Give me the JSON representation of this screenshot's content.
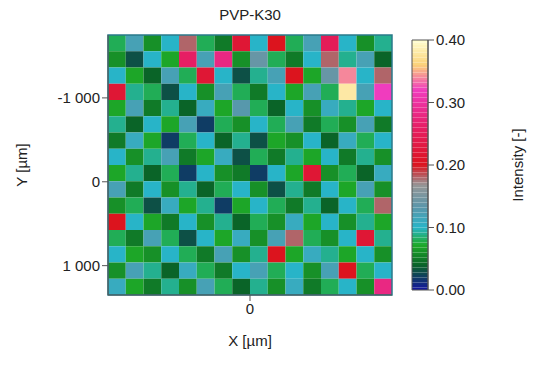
{
  "chart_data": {
    "type": "heatmap",
    "title": "PVP-K30",
    "x_label": "X [µm]",
    "y_label": "Y [µm]",
    "xlim": [
      -1500,
      1500
    ],
    "ylim": [
      -1750,
      1350
    ],
    "xticks": [
      0
    ],
    "yticks": [
      {
        "value": -1000,
        "label": "-1 000"
      },
      {
        "value": 0,
        "label": "0"
      },
      {
        "value": 1000,
        "label": "1 000"
      }
    ],
    "cells": [
      [
        0.08,
        0.12,
        0.06,
        0.1,
        0.18,
        0.08,
        0.05,
        0.22,
        0.1,
        0.2,
        0.08,
        0.12,
        0.25,
        0.1,
        0.06,
        0.09
      ],
      [
        0.06,
        0.03,
        0.1,
        0.07,
        0.26,
        0.12,
        0.28,
        0.06,
        0.14,
        0.08,
        0.05,
        0.1,
        0.18,
        0.09,
        0.12,
        0.04
      ],
      [
        0.1,
        0.07,
        0.04,
        0.12,
        0.08,
        0.22,
        0.1,
        0.03,
        0.09,
        0.12,
        0.2,
        0.07,
        0.14,
        0.34,
        0.1,
        0.18
      ],
      [
        0.22,
        0.09,
        0.08,
        0.03,
        0.1,
        0.06,
        0.12,
        0.08,
        0.05,
        0.1,
        0.07,
        0.12,
        0.08,
        0.38,
        0.12,
        0.32
      ],
      [
        0.07,
        0.12,
        0.05,
        0.09,
        0.04,
        0.11,
        0.07,
        0.13,
        0.08,
        0.04,
        0.1,
        0.06,
        0.11,
        0.09,
        0.07,
        0.1
      ],
      [
        0.09,
        0.04,
        0.1,
        0.07,
        0.12,
        0.02,
        0.08,
        0.06,
        0.1,
        0.08,
        0.12,
        0.05,
        0.08,
        0.06,
        0.12,
        0.05
      ],
      [
        0.05,
        0.11,
        0.07,
        0.02,
        0.08,
        0.1,
        0.04,
        0.09,
        0.03,
        0.07,
        0.06,
        0.1,
        0.04,
        0.11,
        0.08,
        0.1
      ],
      [
        0.1,
        0.06,
        0.09,
        0.12,
        0.05,
        0.07,
        0.11,
        0.03,
        0.08,
        0.05,
        0.09,
        0.07,
        0.1,
        0.05,
        0.09,
        0.06
      ],
      [
        0.07,
        0.09,
        0.04,
        0.08,
        0.02,
        0.1,
        0.06,
        0.05,
        0.02,
        0.1,
        0.07,
        0.22,
        0.06,
        0.08,
        0.04,
        0.11
      ],
      [
        0.12,
        0.05,
        0.1,
        0.06,
        0.09,
        0.04,
        0.08,
        0.1,
        0.06,
        0.03,
        0.09,
        0.05,
        0.1,
        0.07,
        0.12,
        0.06
      ],
      [
        0.06,
        0.08,
        0.03,
        0.11,
        0.07,
        0.09,
        0.02,
        0.07,
        0.1,
        0.08,
        0.05,
        0.09,
        0.04,
        0.1,
        0.08,
        0.18
      ],
      [
        0.2,
        0.1,
        0.07,
        0.05,
        0.1,
        0.06,
        0.09,
        0.04,
        0.08,
        0.06,
        0.11,
        0.07,
        0.1,
        0.06,
        0.09,
        0.07
      ],
      [
        0.08,
        0.05,
        0.12,
        0.08,
        0.03,
        0.1,
        0.07,
        0.11,
        0.06,
        0.12,
        0.18,
        0.08,
        0.06,
        0.1,
        0.22,
        0.09
      ],
      [
        0.1,
        0.07,
        0.06,
        0.1,
        0.08,
        0.05,
        0.12,
        0.06,
        0.09,
        0.2,
        0.07,
        0.11,
        0.09,
        0.07,
        0.1,
        0.06
      ],
      [
        0.06,
        0.12,
        0.09,
        0.04,
        0.11,
        0.08,
        0.05,
        0.1,
        0.12,
        0.08,
        0.1,
        0.06,
        0.12,
        0.2,
        0.08,
        0.1
      ],
      [
        0.11,
        0.07,
        0.05,
        0.09,
        0.06,
        0.12,
        0.08,
        0.04,
        0.09,
        0.06,
        0.11,
        0.05,
        0.08,
        0.1,
        0.06,
        0.28
      ]
    ],
    "colorbar": {
      "label": "Intensity [-]",
      "range": [
        0,
        0.4
      ],
      "ticks": [
        {
          "value": 0,
          "label": "0.00"
        },
        {
          "value": 0.1,
          "label": "0.10"
        },
        {
          "value": 0.2,
          "label": "0.20"
        },
        {
          "value": 0.3,
          "label": "0.30"
        },
        {
          "value": 0.4,
          "label": "0.40"
        }
      ]
    }
  }
}
